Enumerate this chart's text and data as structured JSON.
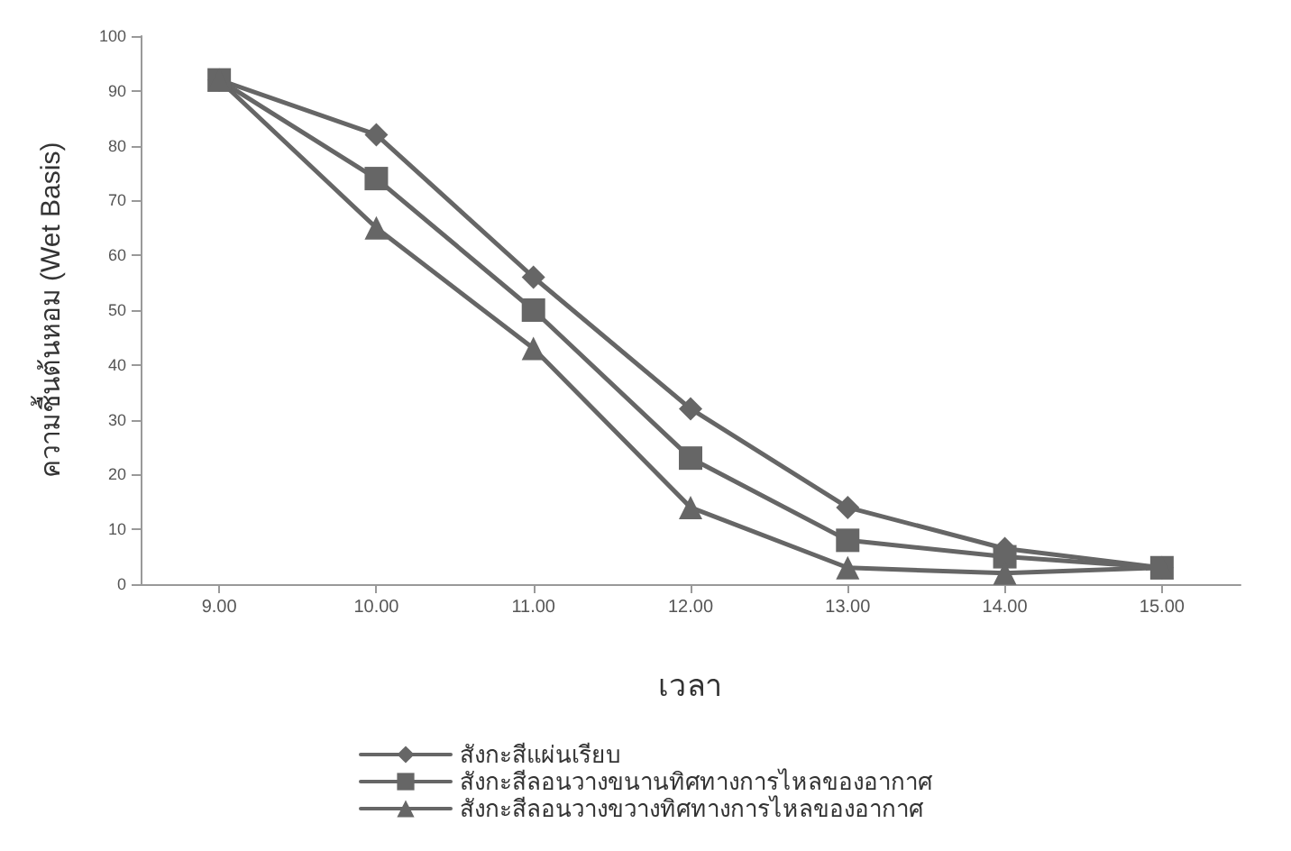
{
  "chart_data": {
    "type": "line",
    "xlabel": "เวลา",
    "ylabel": "ความชื้นต้นหอม (Wet Basis)",
    "categories": [
      "9.00",
      "10.00",
      "11.00",
      "12.00",
      "13.00",
      "14.00",
      "15.00"
    ],
    "series": [
      {
        "name": "สังกะสีแผ่นเรียบ",
        "color": "#666666",
        "marker": "diamond",
        "values": [
          92,
          82,
          56,
          32,
          14,
          6.5,
          3
        ]
      },
      {
        "name": "สังกะสีลอนวางขนานทิศทางการไหลของอากาศ",
        "color": "#666666",
        "marker": "square",
        "values": [
          92,
          74,
          50,
          23,
          8,
          5,
          3
        ]
      },
      {
        "name": "สังกะสีลอนวางขวางทิศทางการไหลของอากาศ",
        "color": "#666666",
        "marker": "triangle",
        "values": [
          92,
          65,
          43,
          14,
          3,
          2,
          3
        ]
      }
    ],
    "ylim": [
      0,
      100
    ],
    "yticks": [
      0,
      10,
      20,
      30,
      40,
      50,
      60,
      70,
      80,
      90,
      100
    ],
    "grid": false,
    "legend": "bottom",
    "line_style": "solid"
  }
}
